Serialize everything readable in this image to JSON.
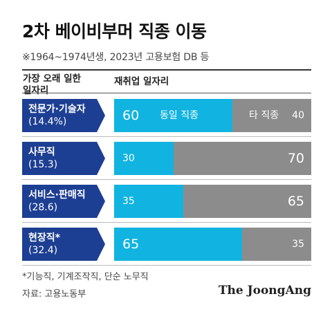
{
  "title": "2차 베이비부머 직종 이동",
  "subtitle": "※1964~1974년생, 2023년 고용보험 DB 등",
  "columns": {
    "left_line1": "가장 오래 일한",
    "left_line2": "일자리",
    "right": "재취업 일자리"
  },
  "legend": {
    "same": "동일 직종",
    "other": "타 직종"
  },
  "rows": [
    {
      "name": "전문가·기술자",
      "share": "(14.4%)",
      "same": "60",
      "other": "40"
    },
    {
      "name": "사무직",
      "share": "(15.3)",
      "same": "30",
      "other": "70"
    },
    {
      "name": "서비스·판매직",
      "share": "(28.6)",
      "same": "35",
      "other": "65"
    },
    {
      "name": "현장직*",
      "share": "(32.4)",
      "same": "65",
      "other": "35"
    }
  ],
  "footnote": "*기능직, 기계조작직, 단순 노무직",
  "source": "자료: 고용노동부",
  "logo": "The JoongAng",
  "colors": {
    "same": "#11b3e0",
    "other": "#8c8c8c",
    "label": "#1d3f93"
  },
  "chart_data": {
    "type": "bar",
    "stacked": true,
    "orientation": "horizontal",
    "categories": [
      "전문가·기술자 (14.4%)",
      "사무직 (15.3)",
      "서비스·판매직 (28.6)",
      "현장직* (32.4)"
    ],
    "series": [
      {
        "name": "동일 직종",
        "values": [
          60,
          30,
          35,
          65
        ]
      },
      {
        "name": "타 직종",
        "values": [
          40,
          70,
          65,
          35
        ]
      }
    ],
    "title": "2차 베이비부머 직종 이동",
    "xlim": [
      0,
      100
    ]
  }
}
